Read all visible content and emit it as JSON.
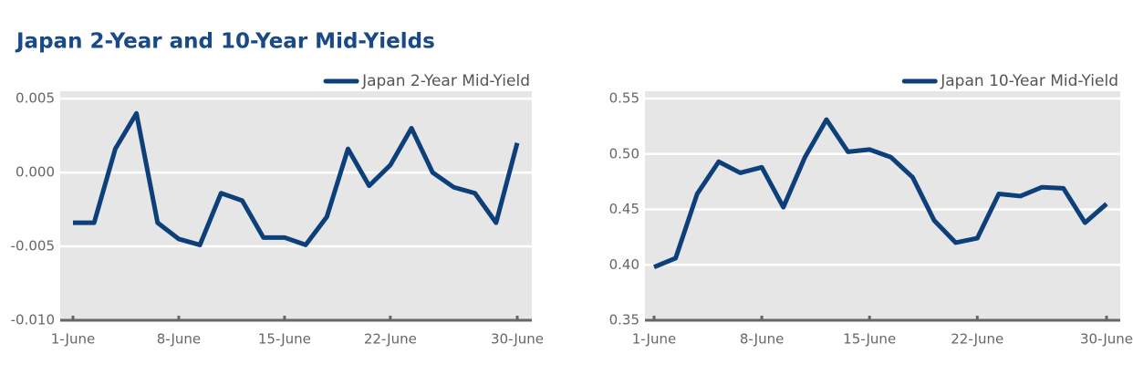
{
  "title": "Japan 2-Year and 10-Year Mid-Yields",
  "chart_data": [
    {
      "type": "line",
      "categories": [
        "1-June",
        null,
        null,
        null,
        null,
        "8-June",
        null,
        null,
        null,
        null,
        "15-June",
        null,
        null,
        null,
        null,
        "22-June",
        null,
        null,
        null,
        null,
        null,
        "30-June"
      ],
      "series": [
        {
          "name": "Japan 2-Year Mid-Yield",
          "color": "#0d3f7a",
          "values": [
            -0.0034,
            -0.0034,
            0.0016,
            0.004,
            -0.0034,
            -0.0045,
            -0.0049,
            -0.0014,
            -0.0019,
            -0.0044,
            -0.0044,
            -0.0049,
            -0.003,
            0.0016,
            -0.0009,
            0.0005,
            0.003,
            0,
            -0.001,
            -0.0014,
            -0.0034,
            0.002
          ]
        }
      ],
      "ylim": [
        -0.01,
        0.0055
      ],
      "yticks": [
        {
          "value": -0.01,
          "label": "-0.010"
        },
        {
          "value": -0.005,
          "label": "-0.005"
        },
        {
          "value": 0,
          "label": "0.000"
        },
        {
          "value": 0.005,
          "label": "0.005"
        }
      ],
      "grid": true,
      "legend": "top-right"
    },
    {
      "type": "line",
      "categories": [
        "1-June",
        null,
        null,
        null,
        null,
        "8-June",
        null,
        null,
        null,
        null,
        "15-June",
        null,
        null,
        null,
        null,
        "22-June",
        null,
        null,
        null,
        null,
        null,
        "30-June"
      ],
      "series": [
        {
          "name": "Japan 10-Year Mid-Yield",
          "color": "#0d3f7a",
          "values": [
            0.398,
            0.406,
            0.464,
            0.493,
            0.483,
            0.488,
            0.452,
            0.497,
            0.531,
            0.502,
            0.504,
            0.497,
            0.479,
            0.44,
            0.42,
            0.424,
            0.464,
            0.462,
            0.47,
            0.469,
            0.438,
            0.455
          ]
        }
      ],
      "ylim": [
        0.35,
        0.5566
      ],
      "yticks": [
        0.35,
        {
          "value": 0.4,
          "label": "0.40"
        },
        0.45,
        {
          "value": 0.5,
          "label": "0.50"
        },
        0.55
      ],
      "grid": true,
      "legend": "top-right"
    }
  ]
}
